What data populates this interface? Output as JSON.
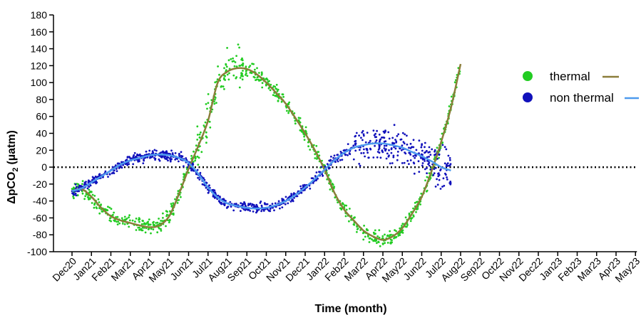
{
  "chart_data": {
    "type": "scatter",
    "title": "",
    "xlabel": "Time (month)",
    "ylabel_main": "ΔpCO",
    "ylabel_sub": "2",
    "ylabel_unit": "(µatm)",
    "ylim": [
      -100,
      180
    ],
    "yticks": [
      -100,
      -80,
      -60,
      -40,
      -20,
      0,
      20,
      40,
      60,
      80,
      100,
      120,
      140,
      160,
      180
    ],
    "categories": [
      "Dec20",
      "Jan21",
      "Feb21",
      "Mar21",
      "Apr21",
      "May21",
      "Jun21",
      "Jul21",
      "Aug21",
      "Sep21",
      "Oct21",
      "Nov21",
      "Dec21",
      "Jan22",
      "Feb22",
      "Mar22",
      "Apr22",
      "May22",
      "Jun22",
      "Jul22",
      "Aug22",
      "Sep22",
      "Oct22",
      "Nov22",
      "Dec22",
      "Jan23",
      "Feb23",
      "Mar23",
      "Apr23",
      "May23"
    ],
    "reference_line": {
      "y": 0,
      "style": "dotted"
    },
    "legend_position": "right",
    "series": [
      {
        "name": "thermal",
        "marker_color": "#22cc22",
        "line_color": "#8b7d3a",
        "x": [
          0,
          0.5,
          1,
          1.5,
          2,
          2.5,
          3,
          3.5,
          4,
          4.5,
          5,
          5.5,
          6,
          6.5,
          7,
          7.5,
          8,
          8.5,
          9,
          9.5,
          10,
          10.5,
          11,
          11.5,
          12,
          12.5,
          13,
          13.5,
          14,
          14.5,
          15,
          15.5,
          16,
          16.5,
          17,
          17.5,
          18,
          18.5,
          19,
          19.5,
          20
        ],
        "values": [
          -28,
          -26,
          -35,
          -48,
          -58,
          -63,
          -66,
          -69,
          -71,
          -69,
          -58,
          -32,
          -2,
          25,
          55,
          100,
          113,
          117,
          116,
          110,
          100,
          88,
          75,
          58,
          40,
          20,
          -3,
          -30,
          -50,
          -63,
          -75,
          -82,
          -86,
          -82,
          -72,
          -55,
          -35,
          -5,
          30,
          70,
          122
        ]
      },
      {
        "name": "non thermal",
        "marker_color": "#1111bb",
        "line_color": "#4d9aee",
        "x": [
          0,
          0.5,
          1,
          1.5,
          2,
          2.5,
          3,
          3.5,
          4,
          4.5,
          5,
          5.5,
          6,
          6.5,
          7,
          7.5,
          8,
          8.5,
          9,
          9.5,
          10,
          10.5,
          11,
          11.5,
          12,
          12.5,
          13,
          13.5,
          14,
          14.5,
          15,
          15.5,
          16,
          16.5,
          17,
          17.5,
          18,
          18.5,
          19,
          19.5
        ],
        "values": [
          -28,
          -25,
          -18,
          -11,
          -4,
          3,
          8,
          11,
          14,
          15,
          14,
          11,
          5,
          -8,
          -24,
          -36,
          -43,
          -46,
          -48,
          -49,
          -48,
          -45,
          -40,
          -33,
          -24,
          -14,
          -3,
          8,
          17,
          23,
          26,
          28,
          28,
          26,
          23,
          18,
          13,
          7,
          0,
          -4
        ]
      }
    ]
  }
}
